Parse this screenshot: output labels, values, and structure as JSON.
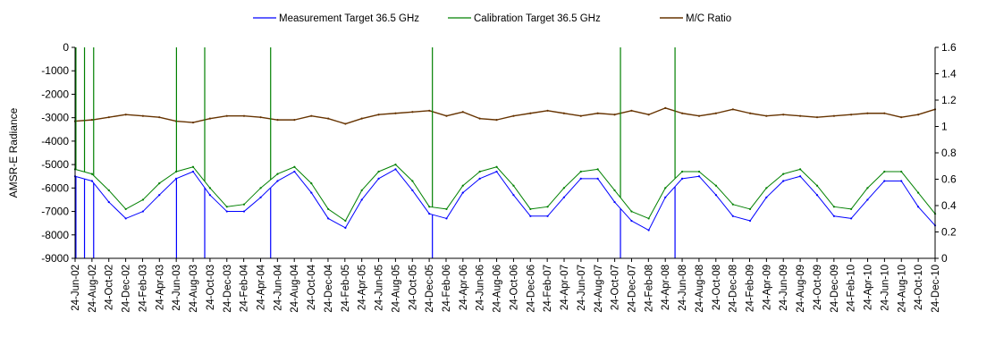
{
  "chart_data": {
    "type": "line",
    "title": "",
    "ylabel": "AMSR-E Radiance",
    "y2label": "",
    "ylim": [
      -9000,
      0
    ],
    "y2lim": [
      0,
      1.6
    ],
    "yticks": [
      0,
      -1000,
      -2000,
      -3000,
      -4000,
      -5000,
      -6000,
      -7000,
      -8000,
      -9000
    ],
    "y2ticks": [
      0,
      0.2,
      0.4,
      0.6,
      0.8,
      1,
      1.2,
      1.4,
      1.6
    ],
    "x_tick_labels": [
      "24-Jun-02",
      "24-Aug-02",
      "24-Oct-02",
      "24-Dec-02",
      "24-Feb-03",
      "24-Apr-03",
      "24-Jun-03",
      "24-Aug-03",
      "24-Oct-03",
      "24-Dec-03",
      "24-Feb-04",
      "24-Apr-04",
      "24-Jun-04",
      "24-Aug-04",
      "24-Oct-04",
      "24-Dec-04",
      "24-Feb-05",
      "24-Apr-05",
      "24-Jun-05",
      "24-Aug-05",
      "24-Oct-05",
      "24-Dec-05",
      "24-Feb-06",
      "24-Apr-06",
      "24-Jun-06",
      "24-Aug-06",
      "24-Oct-06",
      "24-Dec-06",
      "24-Feb-07",
      "24-Apr-07",
      "24-Jun-07",
      "24-Aug-07",
      "24-Oct-07",
      "24-Dec-07",
      "24-Feb-08",
      "24-Apr-08",
      "24-Jun-08",
      "24-Aug-08",
      "24-Oct-08",
      "24-Dec-08",
      "24-Feb-09",
      "24-Apr-09",
      "24-Jun-09",
      "24-Aug-09",
      "24-Oct-09",
      "24-Dec-09",
      "24-Feb-10",
      "24-Apr-10",
      "24-Jun-10",
      "24-Aug-10",
      "24-Oct-10",
      "24-Dec-10"
    ],
    "legend_position": "top",
    "grid": false,
    "series": [
      {
        "name": "Measurement Target 36.5 GHz",
        "axis": "left",
        "color": "#0000ff",
        "x": [
          "2002-06-24",
          "2002-08-24",
          "2002-10-24",
          "2002-12-24",
          "2003-02-24",
          "2003-04-24",
          "2003-06-24",
          "2003-08-24",
          "2003-10-24",
          "2003-12-24",
          "2004-02-24",
          "2004-04-24",
          "2004-06-24",
          "2004-08-24",
          "2004-10-24",
          "2004-12-24",
          "2005-02-24",
          "2005-04-24",
          "2005-06-24",
          "2005-08-24",
          "2005-10-24",
          "2005-12-24",
          "2006-02-24",
          "2006-04-24",
          "2006-06-24",
          "2006-08-24",
          "2006-10-24",
          "2006-12-24",
          "2007-02-24",
          "2007-04-24",
          "2007-06-24",
          "2007-08-24",
          "2007-10-24",
          "2007-12-24",
          "2008-02-24",
          "2008-04-24",
          "2008-06-24",
          "2008-08-24",
          "2008-10-24",
          "2008-12-24",
          "2009-02-24",
          "2009-04-24",
          "2009-06-24",
          "2009-08-24",
          "2009-10-24",
          "2009-12-24",
          "2010-02-24",
          "2010-04-24",
          "2010-06-24",
          "2010-08-24",
          "2010-10-24",
          "2010-12-24"
        ],
        "values": [
          -5500,
          -5700,
          -6600,
          -7300,
          -7000,
          -6300,
          -5600,
          -5300,
          -6300,
          -7000,
          -7000,
          -6400,
          -5700,
          -5300,
          -6200,
          -7300,
          -7700,
          -6500,
          -5600,
          -5200,
          -6100,
          -7100,
          -7300,
          -6200,
          -5600,
          -5300,
          -6300,
          -7200,
          -7200,
          -6400,
          -5600,
          -5600,
          -6600,
          -7400,
          -7800,
          -6400,
          -5600,
          -5500,
          -6300,
          -7200,
          -7400,
          -6400,
          -5700,
          -5500,
          -6300,
          -7200,
          -7300,
          -6500,
          -5700,
          -5700,
          -6800,
          -7600
        ]
      },
      {
        "name": "Calibration Target 36.5 GHz",
        "axis": "left",
        "color": "#008000",
        "x": [
          "2002-06-24",
          "2002-08-24",
          "2002-10-24",
          "2002-12-24",
          "2003-02-24",
          "2003-04-24",
          "2003-06-24",
          "2003-08-24",
          "2003-10-24",
          "2003-12-24",
          "2004-02-24",
          "2004-04-24",
          "2004-06-24",
          "2004-08-24",
          "2004-10-24",
          "2004-12-24",
          "2005-02-24",
          "2005-04-24",
          "2005-06-24",
          "2005-08-24",
          "2005-10-24",
          "2005-12-24",
          "2006-02-24",
          "2006-04-24",
          "2006-06-24",
          "2006-08-24",
          "2006-10-24",
          "2006-12-24",
          "2007-02-24",
          "2007-04-24",
          "2007-06-24",
          "2007-08-24",
          "2007-10-24",
          "2007-12-24",
          "2008-02-24",
          "2008-04-24",
          "2008-06-24",
          "2008-08-24",
          "2008-10-24",
          "2008-12-24",
          "2009-02-24",
          "2009-04-24",
          "2009-06-24",
          "2009-08-24",
          "2009-10-24",
          "2009-12-24",
          "2010-02-24",
          "2010-04-24",
          "2010-06-24",
          "2010-08-24",
          "2010-10-24",
          "2010-12-24"
        ],
        "values": [
          -5200,
          -5400,
          -6100,
          -6900,
          -6500,
          -5800,
          -5300,
          -5100,
          -6000,
          -6800,
          -6700,
          -6000,
          -5400,
          -5100,
          -5800,
          -6900,
          -7400,
          -6100,
          -5300,
          -5000,
          -5700,
          -6800,
          -6900,
          -5900,
          -5300,
          -5100,
          -5900,
          -6900,
          -6800,
          -6000,
          -5300,
          -5200,
          -6100,
          -7000,
          -7300,
          -6000,
          -5300,
          -5300,
          -5900,
          -6700,
          -6900,
          -6000,
          -5400,
          -5200,
          -5900,
          -6800,
          -6900,
          -6000,
          -5300,
          -5300,
          -6200,
          -7100
        ]
      },
      {
        "name": "M/C Ratio",
        "axis": "right",
        "color": "#663300",
        "x": [
          "2002-06-24",
          "2002-08-24",
          "2002-10-24",
          "2002-12-24",
          "2003-02-24",
          "2003-04-24",
          "2003-06-24",
          "2003-08-24",
          "2003-10-24",
          "2003-12-24",
          "2004-02-24",
          "2004-04-24",
          "2004-06-24",
          "2004-08-24",
          "2004-10-24",
          "2004-12-24",
          "2005-02-24",
          "2005-04-24",
          "2005-06-24",
          "2005-08-24",
          "2005-10-24",
          "2005-12-24",
          "2006-02-24",
          "2006-04-24",
          "2006-06-24",
          "2006-08-24",
          "2006-10-24",
          "2006-12-24",
          "2007-02-24",
          "2007-04-24",
          "2007-06-24",
          "2007-08-24",
          "2007-10-24",
          "2007-12-24",
          "2008-02-24",
          "2008-04-24",
          "2008-06-24",
          "2008-08-24",
          "2008-10-24",
          "2008-12-24",
          "2009-02-24",
          "2009-04-24",
          "2009-06-24",
          "2009-08-24",
          "2009-10-24",
          "2009-12-24",
          "2010-02-24",
          "2010-04-24",
          "2010-06-24",
          "2010-08-24",
          "2010-10-24",
          "2010-12-24"
        ],
        "values": [
          1.04,
          1.05,
          1.07,
          1.09,
          1.08,
          1.07,
          1.04,
          1.03,
          1.06,
          1.08,
          1.08,
          1.07,
          1.05,
          1.05,
          1.08,
          1.06,
          1.02,
          1.06,
          1.09,
          1.1,
          1.11,
          1.12,
          1.08,
          1.11,
          1.06,
          1.05,
          1.08,
          1.1,
          1.12,
          1.1,
          1.08,
          1.1,
          1.09,
          1.12,
          1.09,
          1.14,
          1.1,
          1.08,
          1.1,
          1.13,
          1.1,
          1.08,
          1.09,
          1.08,
          1.07,
          1.08,
          1.09,
          1.1,
          1.1,
          1.07,
          1.09,
          1.13
        ]
      }
    ],
    "spikes": [
      {
        "series": "Measurement Target 36.5 GHz",
        "x": "2002-06-27",
        "value": -9000
      },
      {
        "series": "Measurement Target 36.5 GHz",
        "x": "2002-07-28",
        "value": -9000
      },
      {
        "series": "Measurement Target 36.5 GHz",
        "x": "2002-08-30",
        "value": -9000
      },
      {
        "series": "Measurement Target 36.5 GHz",
        "x": "2003-06-25",
        "value": -9000
      },
      {
        "series": "Measurement Target 36.5 GHz",
        "x": "2003-10-05",
        "value": -9000
      },
      {
        "series": "Measurement Target 36.5 GHz",
        "x": "2004-05-30",
        "value": -9000
      },
      {
        "series": "Measurement Target 36.5 GHz",
        "x": "2006-01-04",
        "value": -9000
      },
      {
        "series": "Measurement Target 36.5 GHz",
        "x": "2007-11-14",
        "value": -9000
      },
      {
        "series": "Measurement Target 36.5 GHz",
        "x": "2008-05-29",
        "value": -9000
      },
      {
        "series": "Calibration Target 36.5 GHz",
        "x": "2002-06-27",
        "value": 0
      },
      {
        "series": "Calibration Target 36.5 GHz",
        "x": "2002-07-28",
        "value": 0
      },
      {
        "series": "Calibration Target 36.5 GHz",
        "x": "2002-08-30",
        "value": 0
      },
      {
        "series": "Calibration Target 36.5 GHz",
        "x": "2003-06-25",
        "value": 0
      },
      {
        "series": "Calibration Target 36.5 GHz",
        "x": "2003-10-05",
        "value": 0
      },
      {
        "series": "Calibration Target 36.5 GHz",
        "x": "2004-05-30",
        "value": 0
      },
      {
        "series": "Calibration Target 36.5 GHz",
        "x": "2006-01-04",
        "value": 0
      },
      {
        "series": "Calibration Target 36.5 GHz",
        "x": "2007-11-14",
        "value": 0
      },
      {
        "series": "Calibration Target 36.5 GHz",
        "x": "2008-05-29",
        "value": 0
      }
    ]
  }
}
